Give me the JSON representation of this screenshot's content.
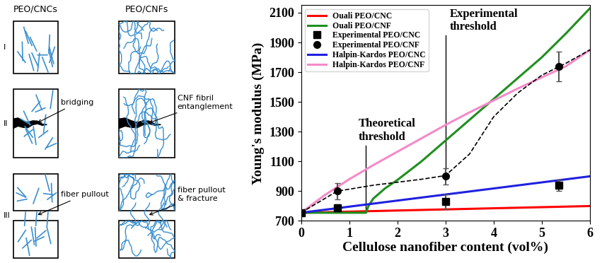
{
  "diagram": {
    "columns": [
      "PEO/CNCs",
      "PEO/CNFs"
    ],
    "rows": [
      {
        "label": "I"
      },
      {
        "label": "II",
        "notes": {
          "PEO/CNCs": "bridging",
          "PEO/CNFs": "CNF fibril\nentanglement"
        }
      },
      {
        "label": "III",
        "notes": {
          "PEO/CNCs": "fiber pullout",
          "PEO/CNFs": "fiber pullout\n& fracture"
        }
      }
    ]
  },
  "chart_data": {
    "type": "line",
    "x_label": "Cellulose nanofiber content (vol%)",
    "y_label": "Young's modulus (MPa)",
    "xlim": [
      0,
      6
    ],
    "xticks": [
      0,
      1,
      2,
      3,
      4,
      5,
      6
    ],
    "ylim": [
      700,
      2150
    ],
    "yticks": [
      700,
      900,
      1100,
      1300,
      1500,
      1700,
      1900,
      2100
    ],
    "grid": false,
    "legend": "upper left",
    "series": [
      {
        "name": "Ouali PEO/CNC",
        "color": "#ff0000",
        "line_style": "solid",
        "marker": "none",
        "x": [
          0,
          6
        ],
        "values": [
          755,
          800
        ]
      },
      {
        "name": "Ouali PEO/CNF",
        "color": "#1f8f1f",
        "line_style": "solid",
        "marker": "none",
        "x": [
          0,
          1.35,
          1.4,
          1.5,
          1.75,
          2,
          2.5,
          3,
          3.5,
          4,
          4.5,
          5,
          5.5,
          6
        ],
        "values": [
          755,
          755,
          800,
          850,
          920,
          975,
          1100,
          1240,
          1380,
          1520,
          1660,
          1800,
          1960,
          2130
        ]
      },
      {
        "name": "Experimental PEO/CNC",
        "type": "scatter",
        "color": "#000000",
        "marker": "square",
        "line_style": "none",
        "x": [
          0,
          0.75,
          3,
          5.35
        ],
        "values": [
          755,
          790,
          830,
          940
        ],
        "error": [
          15,
          20,
          50,
          40
        ]
      },
      {
        "name": "Experimental PEO/CNF",
        "type": "scatter",
        "color": "#000000",
        "marker": "circle",
        "line_style": "none",
        "x": [
          0,
          0.75,
          3,
          5.35
        ],
        "values": [
          755,
          900,
          1000,
          1740
        ],
        "error": [
          20,
          55,
          55,
          100
        ]
      },
      {
        "name": "Halpin-Kardos PEO/CNC",
        "color": "#2020e0",
        "line_style": "solid",
        "marker": "none",
        "x": [
          0,
          6
        ],
        "values": [
          755,
          1000
        ]
      },
      {
        "name": "Halpin-Kardos PEO/CNF",
        "color": "#f58ac8",
        "line_style": "solid",
        "marker": "none",
        "x": [
          0,
          0.5,
          1,
          1.5,
          2,
          2.5,
          3,
          3.5,
          4,
          4.5,
          5,
          5.5,
          6
        ],
        "values": [
          755,
          875,
          980,
          1075,
          1165,
          1255,
          1345,
          1430,
          1510,
          1590,
          1665,
          1740,
          1850
        ]
      },
      {
        "color": "#000000",
        "line_style": "dashed",
        "marker": "none",
        "x": [
          0,
          0.75,
          1.5,
          2,
          2.5,
          3,
          3.5,
          4,
          4.5,
          5,
          5.5,
          6
        ],
        "values": [
          755,
          900,
          940,
          960,
          980,
          1005,
          1150,
          1400,
          1560,
          1680,
          1760,
          1850
        ]
      }
    ],
    "annotations": [
      {
        "text": "Theoretical\nthreshold",
        "x": 1.35
      },
      {
        "text": "Experimental\nthreshold",
        "x": 3
      }
    ]
  }
}
